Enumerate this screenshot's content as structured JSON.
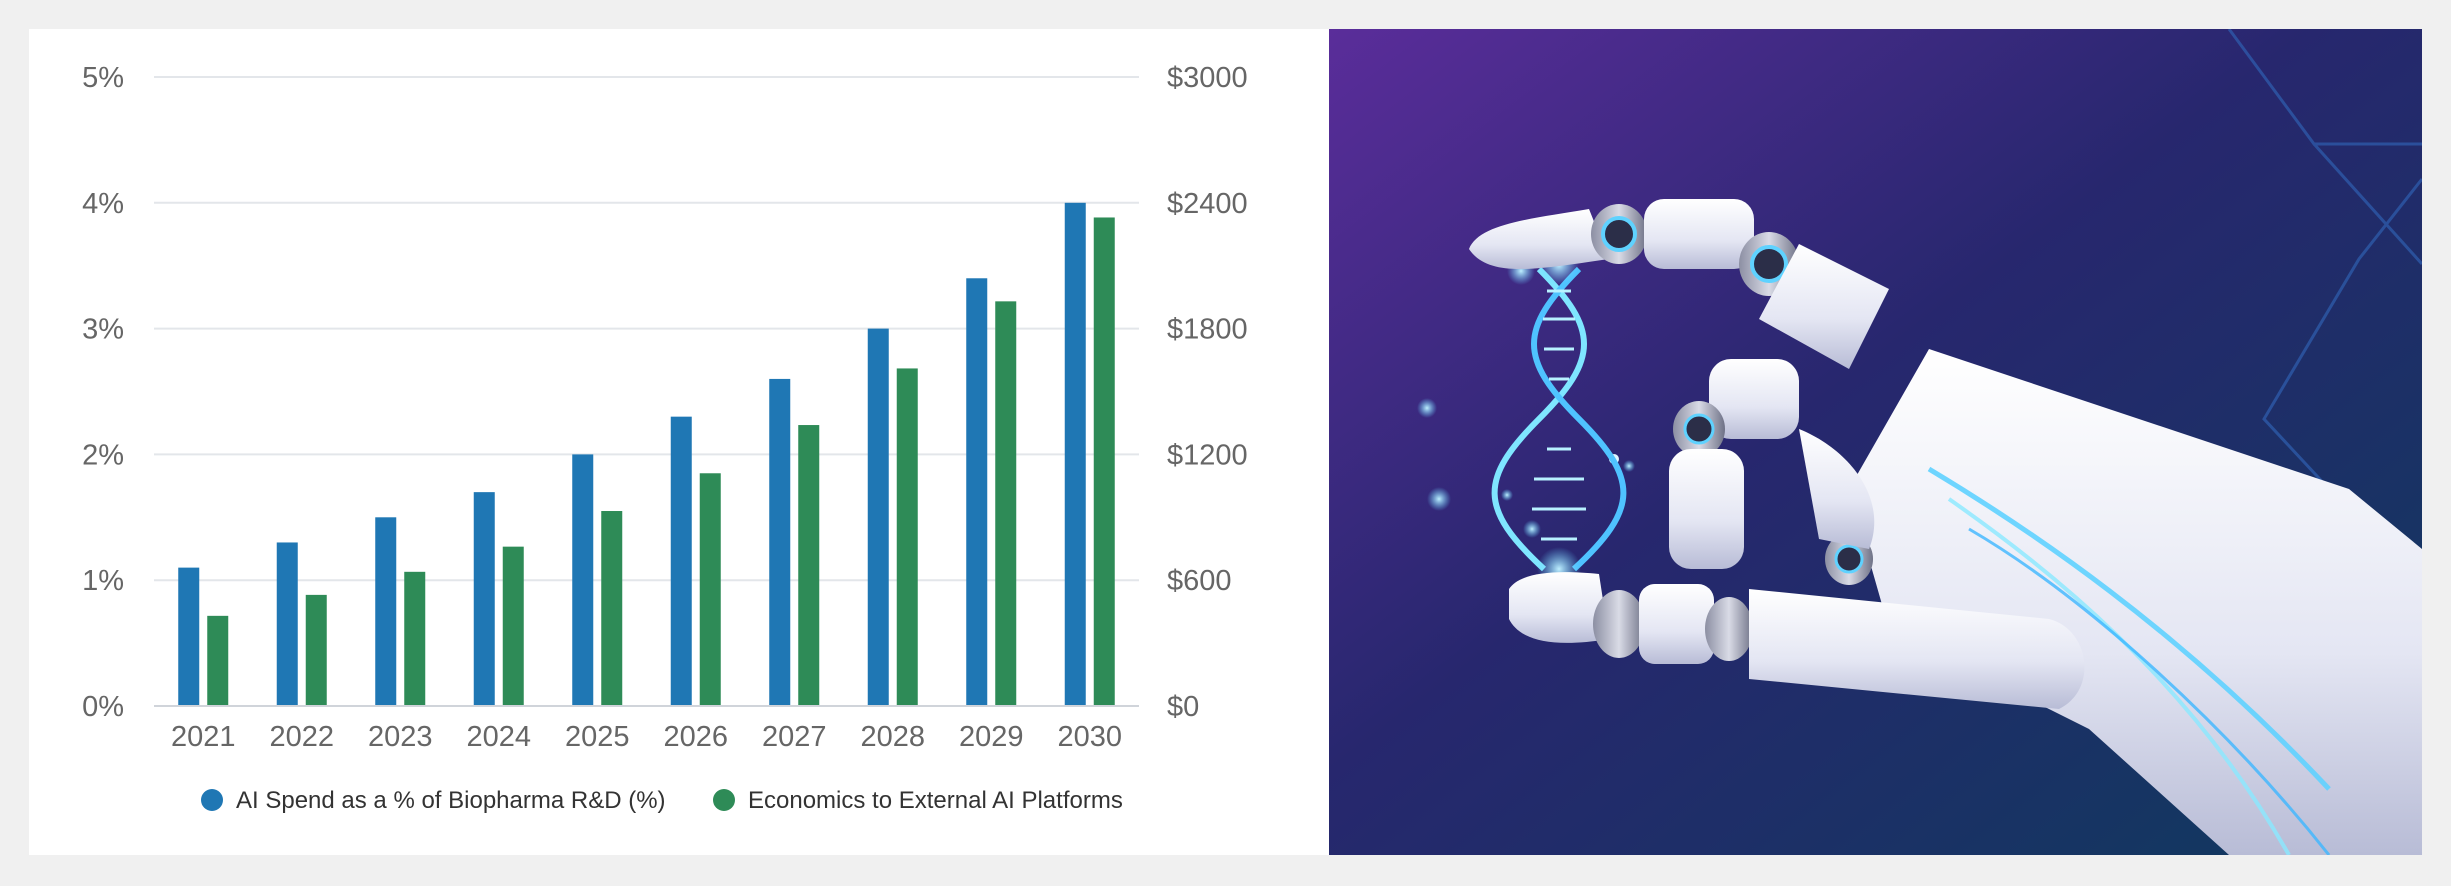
{
  "chart_data": {
    "type": "bar",
    "categories": [
      "2021",
      "2022",
      "2023",
      "2024",
      "2025",
      "2026",
      "2027",
      "2028",
      "2029",
      "2030"
    ],
    "series": [
      {
        "name": "AI Spend as a % of Biopharma R&D (%)",
        "axis": "left",
        "color": "#1f77b4",
        "values": [
          1.1,
          1.3,
          1.5,
          1.7,
          2.0,
          2.3,
          2.6,
          3.0,
          3.4,
          4.0
        ]
      },
      {
        "name": "Economics to External AI Platforms",
        "axis": "right",
        "color": "#2e8b57",
        "values": [
          430,
          530,
          640,
          760,
          930,
          1110,
          1340,
          1610,
          1930,
          2330
        ]
      }
    ],
    "y_left": {
      "ticks": [
        "0%",
        "1%",
        "2%",
        "3%",
        "4%",
        "5%"
      ],
      "tick_values": [
        0,
        1,
        2,
        3,
        4,
        5
      ],
      "lim": [
        0,
        5
      ]
    },
    "y_right": {
      "ticks": [
        "$0",
        "$600",
        "$1200",
        "$1800",
        "$2400",
        "$3000"
      ],
      "tick_values": [
        0,
        600,
        1200,
        1800,
        2400,
        3000
      ],
      "lim": [
        0,
        3000
      ]
    },
    "grid": true,
    "legend": "bottom"
  },
  "illustration": {
    "description_icon": "robot-hand-holding-dna-icon",
    "background_colors": [
      "#4a2a8c",
      "#1b2f63",
      "#0e3a5c"
    ]
  }
}
